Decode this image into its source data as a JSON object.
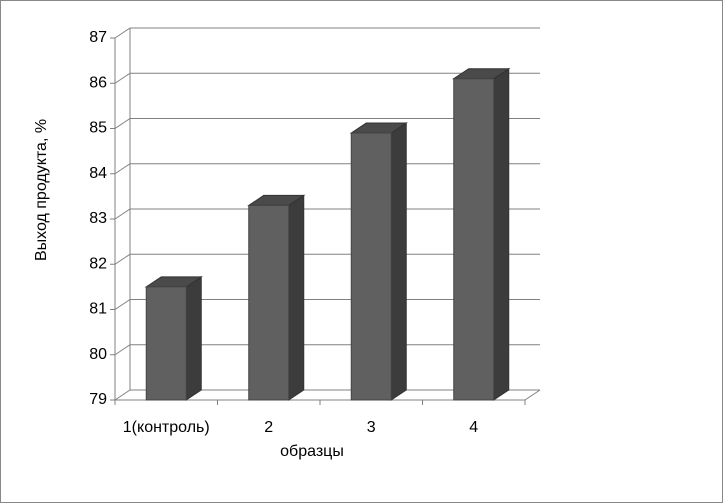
{
  "chart_data": {
    "type": "bar3d",
    "x_label": "образцы",
    "y_label": "Выход продукта, %",
    "categories": [
      "1(контроль)",
      "2",
      "3",
      "4"
    ],
    "values": [
      81.5,
      83.3,
      84.9,
      86.1
    ],
    "color": "#606060",
    "ylim": [
      79,
      87
    ],
    "yticks": [
      79,
      80,
      81,
      82,
      83,
      84,
      85,
      86,
      87
    ],
    "grid": true
  }
}
